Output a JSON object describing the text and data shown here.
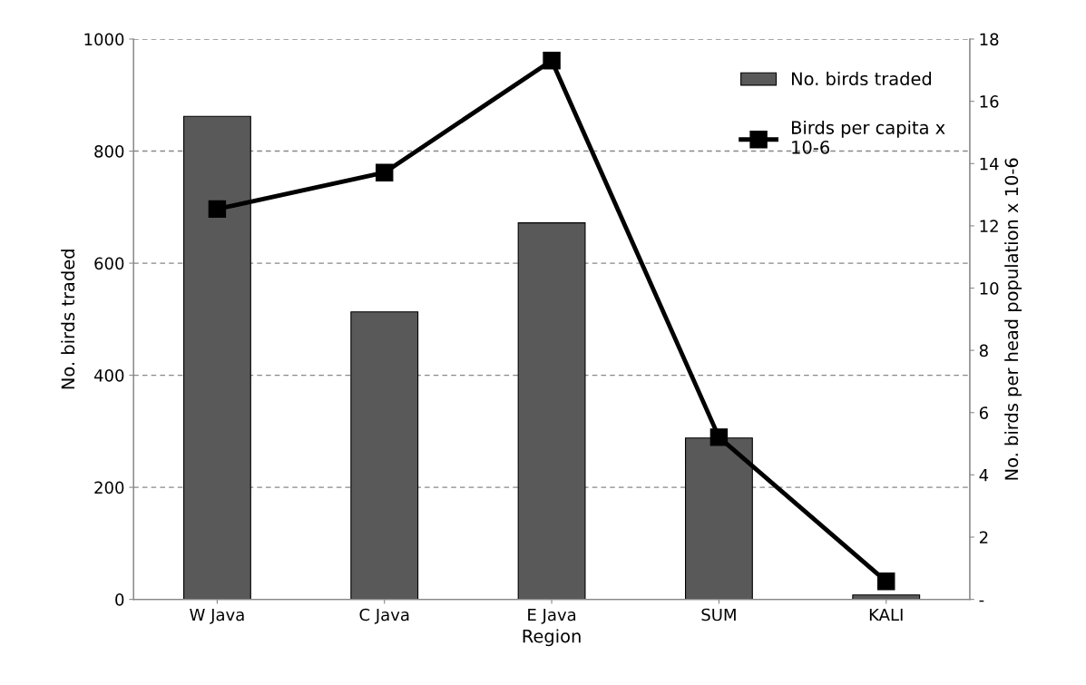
{
  "chart_data": {
    "type": "bar",
    "xlabel": "Region",
    "ylabel": "No. birds traded",
    "y2label": "No. birds per head population x 10-6",
    "categories": [
      "W Java",
      "C Java",
      "E Java",
      "SUM",
      "KALI"
    ],
    "series": [
      {
        "name": "No. birds traded",
        "color": "#595959",
        "values": [
          862,
          513,
          672,
          288,
          8
        ]
      },
      {
        "name": "Birds per capita x\n10-6",
        "type": "line",
        "axis": "y2",
        "color": "#000000",
        "marker": "square",
        "values": [
          12.54,
          13.71,
          17.31,
          5.21,
          0.58
        ]
      }
    ],
    "ylim": [
      0,
      1000
    ],
    "yticks": [
      0,
      200,
      400,
      600,
      800,
      1000
    ],
    "y2lim": [
      0,
      18
    ],
    "y2ticks": [
      {
        "value": 0,
        "label": "-"
      },
      2,
      4,
      6,
      8,
      10,
      12,
      14,
      16,
      18
    ],
    "grid": "y",
    "legend": "top right"
  }
}
